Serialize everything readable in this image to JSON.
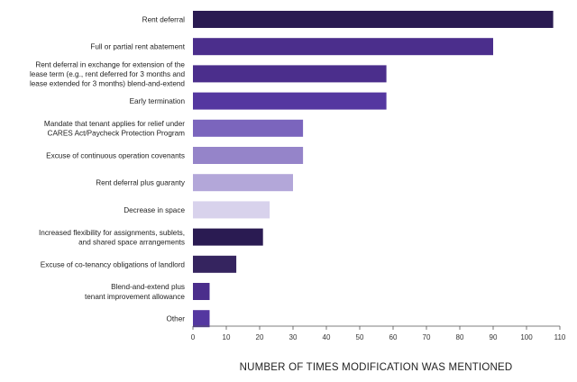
{
  "chart_data": {
    "type": "bar",
    "orientation": "horizontal",
    "categories": [
      [
        "Rent deferral"
      ],
      [
        "Full or partial rent abatement"
      ],
      [
        "Rent deferral in exchange for extension of the",
        "lease term (e.g., rent deferred for 3 months and",
        "lease extended for 3 months) blend-and-extend"
      ],
      [
        "Early termination"
      ],
      [
        "Mandate that tenant applies for relief under",
        "CARES Act/Paycheck Protection Program"
      ],
      [
        "Excuse of continuous operation covenants"
      ],
      [
        "Rent deferral plus guaranty"
      ],
      [
        "Decrease in space"
      ],
      [
        "Increased flexibility for assignments, sublets,",
        "and shared space arrangements"
      ],
      [
        "Excuse of co-tenancy obligations of landlord"
      ],
      [
        "Blend-and-extend plus",
        "tenant improvement allowance"
      ],
      [
        "Other"
      ]
    ],
    "values": [
      108,
      90,
      58,
      58,
      33,
      33,
      30,
      23,
      21,
      13,
      5,
      5
    ],
    "bar_colors": [
      "#2a1b52",
      "#4b2e8c",
      "#4b2e8c",
      "#5437a0",
      "#7b65bd",
      "#9584c9",
      "#b3a7d9",
      "#d8d2ec",
      "#2a1b52",
      "#35245f",
      "#4b2e8c",
      "#5437a0"
    ],
    "x_ticks": [
      0,
      10,
      20,
      30,
      40,
      50,
      60,
      70,
      80,
      90,
      100,
      110
    ],
    "xlim": [
      0,
      110
    ],
    "xlabel": "NUMBER OF TIMES MODIFICATION WAS MENTIONED",
    "grid": false
  }
}
